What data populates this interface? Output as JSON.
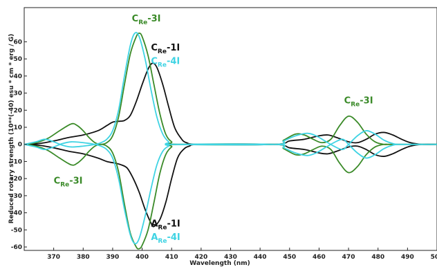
{
  "chart_data": {
    "type": "line",
    "xlabel": "Wavelength (nm)",
    "ylabel": "Reduced rotary strength  (10**(-40) esu * cm * erg / G)",
    "xlim": [
      360,
      500
    ],
    "ylim": [
      -62,
      80
    ],
    "xticks": [
      "370",
      "380",
      "390",
      "400",
      "410",
      "420",
      "430",
      "440",
      "450",
      "460",
      "470",
      "480",
      "490",
      "500"
    ],
    "yticks": [
      "-60",
      "-50",
      "-40",
      "-30",
      "-20",
      "-10",
      "0",
      "10",
      "20",
      "30",
      "40",
      "50",
      "60"
    ],
    "grid": false,
    "legend": "none",
    "annotations": [
      {
        "main": "C",
        "sub": "Re",
        "suffix": "-3I",
        "color": "#3a8a28",
        "x": 396.5,
        "y": 72
      },
      {
        "main": "C",
        "sub": "Re",
        "suffix": "-1I",
        "color": "#111111",
        "x": 403,
        "y": 55
      },
      {
        "main": "C",
        "sub": "Re",
        "suffix": "-4I",
        "color": "#3fd3e3",
        "x": 403,
        "y": 47
      },
      {
        "main": "C",
        "sub": "Re",
        "suffix": "-3I",
        "color": "#3a8a28",
        "x": 468.5,
        "y": 24
      },
      {
        "main": "C",
        "sub": "Re",
        "suffix": "-3I",
        "color": "#3a8a28",
        "x": 370,
        "y": -23
      },
      {
        "main": "A",
        "sub": "Re",
        "suffix": "-1I",
        "color": "#111111",
        "x": 403,
        "y": -48
      },
      {
        "main": "A",
        "sub": "Re",
        "suffix": "-4I",
        "color": "#3fd3e3",
        "x": 403,
        "y": -56
      }
    ],
    "series": [
      {
        "color": "#111111",
        "values": [
          [
            360,
            0
          ],
          [
            365,
            0.5
          ],
          [
            370,
            2
          ],
          [
            375,
            4
          ],
          [
            380,
            5.5
          ],
          [
            385,
            8
          ],
          [
            388,
            11
          ],
          [
            390,
            13
          ],
          [
            392,
            13.5
          ],
          [
            394,
            14
          ],
          [
            396,
            17
          ],
          [
            398,
            25
          ],
          [
            400,
            35
          ],
          [
            402,
            44
          ],
          [
            403.5,
            47.5
          ],
          [
            405,
            45
          ],
          [
            407,
            35
          ],
          [
            409,
            22
          ],
          [
            411,
            10
          ],
          [
            413,
            4
          ],
          [
            415,
            1
          ],
          [
            420,
            0
          ],
          [
            445,
            0
          ],
          [
            450,
            2
          ],
          [
            455,
            3
          ],
          [
            460,
            5
          ],
          [
            463,
            5.5
          ],
          [
            466,
            4
          ],
          [
            470,
            1.5
          ],
          [
            473,
            1
          ],
          [
            476,
            3
          ],
          [
            479,
            6
          ],
          [
            482,
            7
          ],
          [
            485,
            5.5
          ],
          [
            488,
            3
          ],
          [
            491,
            1
          ],
          [
            495,
            0
          ],
          [
            500,
            0
          ]
        ]
      },
      {
        "color": "#111111",
        "values": [
          [
            360,
            0
          ],
          [
            365,
            -0.5
          ],
          [
            370,
            -2
          ],
          [
            375,
            -4
          ],
          [
            380,
            -5.5
          ],
          [
            385,
            -8
          ],
          [
            388,
            -10
          ],
          [
            391,
            -11
          ],
          [
            393,
            -12
          ],
          [
            395,
            -14
          ],
          [
            397,
            -20
          ],
          [
            399,
            -28
          ],
          [
            401,
            -38
          ],
          [
            403,
            -46
          ],
          [
            404,
            -48
          ],
          [
            406,
            -44
          ],
          [
            408,
            -34
          ],
          [
            410,
            -20
          ],
          [
            412,
            -8
          ],
          [
            414,
            -3
          ],
          [
            416,
            -1
          ],
          [
            420,
            0
          ],
          [
            445,
            0
          ],
          [
            450,
            -2
          ],
          [
            455,
            -3
          ],
          [
            460,
            -5
          ],
          [
            463,
            -5.5
          ],
          [
            466,
            -4
          ],
          [
            470,
            -1.5
          ],
          [
            473,
            -1
          ],
          [
            476,
            -3
          ],
          [
            479,
            -6
          ],
          [
            482,
            -7
          ],
          [
            485,
            -5.5
          ],
          [
            488,
            -3
          ],
          [
            491,
            -1
          ],
          [
            495,
            0
          ],
          [
            500,
            0
          ]
        ]
      },
      {
        "color": "#3a8a28",
        "values": [
          [
            360,
            0
          ],
          [
            364,
            1
          ],
          [
            368,
            3.5
          ],
          [
            372,
            8
          ],
          [
            376,
            12
          ],
          [
            378,
            11
          ],
          [
            380,
            8
          ],
          [
            382,
            4
          ],
          [
            384,
            1
          ],
          [
            386,
            0
          ],
          [
            388,
            1
          ],
          [
            390,
            5
          ],
          [
            392,
            16
          ],
          [
            394,
            35
          ],
          [
            396,
            53
          ],
          [
            398,
            63
          ],
          [
            399,
            65
          ],
          [
            400,
            63
          ],
          [
            402,
            52
          ],
          [
            404,
            35
          ],
          [
            406,
            18
          ],
          [
            408,
            6
          ],
          [
            410,
            1.5
          ],
          [
            412,
            0
          ],
          [
            445,
            0
          ],
          [
            448,
            2.5
          ],
          [
            452,
            6
          ],
          [
            455,
            5.5
          ],
          [
            458,
            3
          ],
          [
            461,
            1
          ],
          [
            464,
            3
          ],
          [
            467,
            11
          ],
          [
            470,
            16.5
          ],
          [
            473,
            13
          ],
          [
            476,
            6
          ],
          [
            479,
            1.5
          ],
          [
            482,
            0
          ],
          [
            485,
            0
          ],
          [
            500,
            0
          ]
        ]
      },
      {
        "color": "#3a8a28",
        "values": [
          [
            360,
            0
          ],
          [
            364,
            -1
          ],
          [
            368,
            -3.5
          ],
          [
            372,
            -8
          ],
          [
            376,
            -12
          ],
          [
            378,
            -11
          ],
          [
            380,
            -8
          ],
          [
            382,
            -4
          ],
          [
            384,
            -1
          ],
          [
            386,
            0
          ],
          [
            388,
            -1
          ],
          [
            390,
            -5
          ],
          [
            392,
            -16
          ],
          [
            394,
            -35
          ],
          [
            396,
            -52
          ],
          [
            398,
            -60
          ],
          [
            399,
            -61
          ],
          [
            400,
            -59
          ],
          [
            402,
            -50
          ],
          [
            404,
            -34
          ],
          [
            406,
            -17
          ],
          [
            408,
            -6
          ],
          [
            410,
            -1.5
          ],
          [
            412,
            0
          ],
          [
            445,
            0
          ],
          [
            448,
            -2.5
          ],
          [
            452,
            -6
          ],
          [
            455,
            -5.5
          ],
          [
            458,
            -3
          ],
          [
            461,
            -1
          ],
          [
            464,
            -3
          ],
          [
            467,
            -11
          ],
          [
            470,
            -16.5
          ],
          [
            473,
            -13
          ],
          [
            476,
            -6
          ],
          [
            479,
            -1.5
          ],
          [
            482,
            0
          ],
          [
            485,
            0
          ],
          [
            500,
            0
          ]
        ]
      },
      {
        "color": "#3fd3e3",
        "values": [
          [
            360,
            0
          ],
          [
            364,
            1.5
          ],
          [
            367,
            3
          ],
          [
            370,
            1.5
          ],
          [
            373,
            -0.5
          ],
          [
            376,
            -1.5
          ],
          [
            380,
            -1
          ],
          [
            384,
            0
          ],
          [
            386,
            1
          ],
          [
            388,
            3
          ],
          [
            390,
            8
          ],
          [
            392,
            20
          ],
          [
            394,
            40
          ],
          [
            396,
            58
          ],
          [
            397.5,
            65
          ],
          [
            399,
            63
          ],
          [
            401,
            50
          ],
          [
            403,
            32
          ],
          [
            405,
            16
          ],
          [
            407,
            6
          ],
          [
            409,
            1.5
          ],
          [
            411,
            0
          ],
          [
            445,
            0
          ],
          [
            448,
            2
          ],
          [
            452,
            5
          ],
          [
            456,
            6.5
          ],
          [
            459,
            5
          ],
          [
            462,
            2
          ],
          [
            465,
            -1
          ],
          [
            468,
            -3
          ],
          [
            470,
            0
          ],
          [
            473,
            5
          ],
          [
            476,
            8
          ],
          [
            479,
            6
          ],
          [
            482,
            2.5
          ],
          [
            485,
            0.5
          ],
          [
            488,
            0
          ],
          [
            500,
            0
          ]
        ]
      },
      {
        "color": "#3fd3e3",
        "values": [
          [
            360,
            0
          ],
          [
            364,
            -1.5
          ],
          [
            367,
            -3
          ],
          [
            370,
            -1.5
          ],
          [
            373,
            0.5
          ],
          [
            376,
            1.5
          ],
          [
            380,
            1
          ],
          [
            384,
            0
          ],
          [
            386,
            -1
          ],
          [
            388,
            -3
          ],
          [
            390,
            -8
          ],
          [
            392,
            -20
          ],
          [
            394,
            -38
          ],
          [
            396,
            -53
          ],
          [
            397.5,
            -58
          ],
          [
            399,
            -55
          ],
          [
            401,
            -42
          ],
          [
            403,
            -26
          ],
          [
            405,
            -12
          ],
          [
            407,
            -4
          ],
          [
            409,
            -1
          ],
          [
            411,
            0
          ],
          [
            445,
            0
          ],
          [
            448,
            -2
          ],
          [
            452,
            -5
          ],
          [
            456,
            -6.5
          ],
          [
            459,
            -5
          ],
          [
            462,
            -2
          ],
          [
            465,
            1
          ],
          [
            468,
            3
          ],
          [
            470,
            0
          ],
          [
            473,
            -5
          ],
          [
            476,
            -8
          ],
          [
            479,
            -6
          ],
          [
            482,
            -2.5
          ],
          [
            485,
            -0.5
          ],
          [
            488,
            0
          ],
          [
            500,
            0
          ]
        ]
      }
    ]
  }
}
